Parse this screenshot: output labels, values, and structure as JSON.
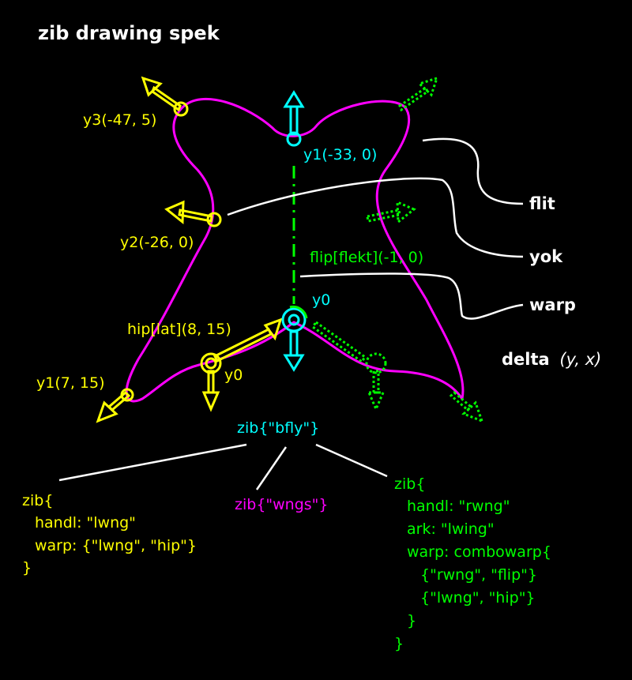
{
  "title": "zib drawing spek",
  "colors": {
    "bg": "#000000",
    "wing": "#ff00ff",
    "yellow": "#ffff00",
    "cyan": "#00ffff",
    "green": "#00ff00",
    "white": "#ffffff"
  },
  "points": {
    "y3": "y3(-47, 5)",
    "y2": "y2(-26, 0)",
    "y1_left": "y1(7, 15)",
    "y1_top": "y1(-33, 0)",
    "y0_left": "y0",
    "y0_center": "y0",
    "hip": "hip[lat](8, 15)",
    "flip": "flip[flekt](-1, 0)"
  },
  "legend": {
    "flit": "flit",
    "yok": "yok",
    "warp": "warp",
    "delta": "delta",
    "delta_args": "(y, x)"
  },
  "root_node": "zib{\"bfly\"}",
  "middle_node": "zib{\"wngs\"}",
  "left_node": {
    "open": "zib{",
    "handl": "handl: \"lwng\"",
    "warp": "warp: {\"lwng\", \"hip\"}",
    "close": "}"
  },
  "right_node": {
    "open": "zib{",
    "handl": "handl: \"rwng\"",
    "ark": "ark: \"lwing\"",
    "warp": "warp: combowarp{",
    "item1": "{\"rwng\", \"flip\"}",
    "item2": "{\"lwng\", \"hip\"}",
    "inner_close": "}",
    "close": "}"
  }
}
